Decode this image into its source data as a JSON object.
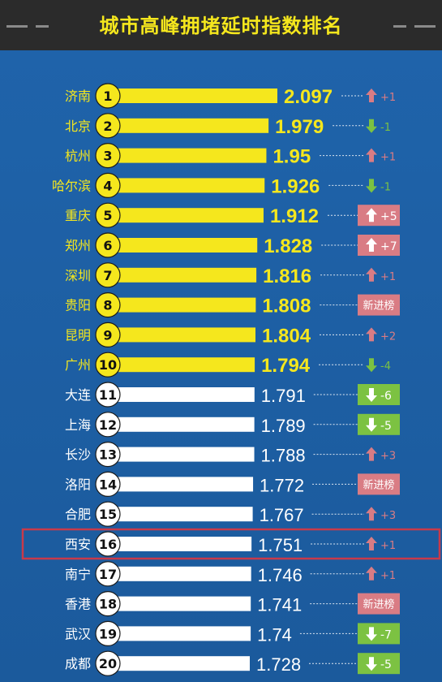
{
  "title": "城市高峰拥堵延时指数排名",
  "colors": {
    "background": "#1E5FA3",
    "top_bar": "#F5E71D",
    "other_bar": "#FFFFFF",
    "top_value": "#F5E71D",
    "other_value": "#FFFFFF",
    "up": "#D97C84",
    "down": "#7CC242",
    "highlight": "#C83A4A"
  },
  "highlight_city": "西安",
  "chart_data": {
    "type": "bar",
    "orientation": "horizontal",
    "title": "城市高峰拥堵延时指数排名",
    "categories": [
      "济南",
      "北京",
      "杭州",
      "哈尔滨",
      "重庆",
      "郑州",
      "深圳",
      "贵阳",
      "昆明",
      "广州",
      "大连",
      "上海",
      "长沙",
      "洛阳",
      "合肥",
      "西安",
      "南宁",
      "香港",
      "武汉",
      "成都"
    ],
    "values": [
      2.097,
      1.979,
      1.95,
      1.926,
      1.912,
      1.828,
      1.816,
      1.808,
      1.804,
      1.794,
      1.791,
      1.789,
      1.788,
      1.772,
      1.767,
      1.751,
      1.746,
      1.741,
      1.74,
      1.728
    ],
    "value_labels": [
      "2.097",
      "1.979",
      "1.95",
      "1.926",
      "1.912",
      "1.828",
      "1.816",
      "1.808",
      "1.804",
      "1.794",
      "1.791",
      "1.789",
      "1.788",
      "1.772",
      "1.767",
      "1.751",
      "1.746",
      "1.741",
      "1.74",
      "1.728"
    ],
    "ranks": [
      "1",
      "2",
      "3",
      "4",
      "5",
      "6",
      "7",
      "8",
      "9",
      "10",
      "11",
      "12",
      "13",
      "14",
      "15",
      "16",
      "17",
      "18",
      "19",
      "20"
    ],
    "rank_change": [
      {
        "dir": "up",
        "text": "+1",
        "boxed": false
      },
      {
        "dir": "down",
        "text": "-1",
        "boxed": false
      },
      {
        "dir": "up",
        "text": "+1",
        "boxed": false
      },
      {
        "dir": "down",
        "text": "-1",
        "boxed": false
      },
      {
        "dir": "up",
        "text": "+5",
        "boxed": true
      },
      {
        "dir": "up",
        "text": "+7",
        "boxed": true
      },
      {
        "dir": "up",
        "text": "+1",
        "boxed": false
      },
      {
        "dir": "new",
        "text": "新进榜",
        "boxed": true
      },
      {
        "dir": "up",
        "text": "+2",
        "boxed": false
      },
      {
        "dir": "down",
        "text": "-4",
        "boxed": false
      },
      {
        "dir": "down",
        "text": "-6",
        "boxed": true
      },
      {
        "dir": "down",
        "text": "-5",
        "boxed": true
      },
      {
        "dir": "up",
        "text": "+3",
        "boxed": false
      },
      {
        "dir": "new",
        "text": "新进榜",
        "boxed": true
      },
      {
        "dir": "up",
        "text": "+3",
        "boxed": false
      },
      {
        "dir": "up",
        "text": "+1",
        "boxed": false
      },
      {
        "dir": "up",
        "text": "+1",
        "boxed": false
      },
      {
        "dir": "new",
        "text": "新进榜",
        "boxed": true
      },
      {
        "dir": "down",
        "text": "-7",
        "boxed": true
      },
      {
        "dir": "down",
        "text": "-5",
        "boxed": true
      }
    ],
    "top_group_size": 10
  }
}
